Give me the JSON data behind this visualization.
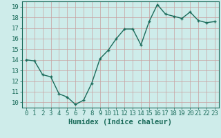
{
  "x": [
    0,
    1,
    2,
    3,
    4,
    5,
    6,
    7,
    8,
    9,
    10,
    11,
    12,
    13,
    14,
    15,
    16,
    17,
    18,
    19,
    20,
    21,
    22,
    23
  ],
  "y": [
    14.0,
    13.9,
    12.6,
    12.4,
    10.8,
    10.5,
    9.8,
    10.2,
    11.8,
    14.1,
    14.9,
    16.0,
    16.9,
    16.9,
    15.4,
    17.6,
    19.2,
    18.3,
    18.1,
    17.9,
    18.5,
    17.7,
    17.5,
    17.6
  ],
  "line_color": "#1a6b5a",
  "marker": "+",
  "marker_size": 3,
  "marker_linewidth": 1.0,
  "bg_color": "#ceecea",
  "grid_color": "#b8d8d4",
  "xlabel": "Humidex (Indice chaleur)",
  "xlabel_color": "#1a6b5a",
  "ylim": [
    9.5,
    19.5
  ],
  "xlim": [
    -0.5,
    23.5
  ],
  "yticks": [
    10,
    11,
    12,
    13,
    14,
    15,
    16,
    17,
    18,
    19
  ],
  "xticks": [
    0,
    1,
    2,
    3,
    4,
    5,
    6,
    7,
    8,
    9,
    10,
    11,
    12,
    13,
    14,
    15,
    16,
    17,
    18,
    19,
    20,
    21,
    22,
    23
  ],
  "tick_color": "#1a6b5a",
  "tick_fontsize": 6.5,
  "xlabel_fontsize": 7.5,
  "line_width": 1.0
}
